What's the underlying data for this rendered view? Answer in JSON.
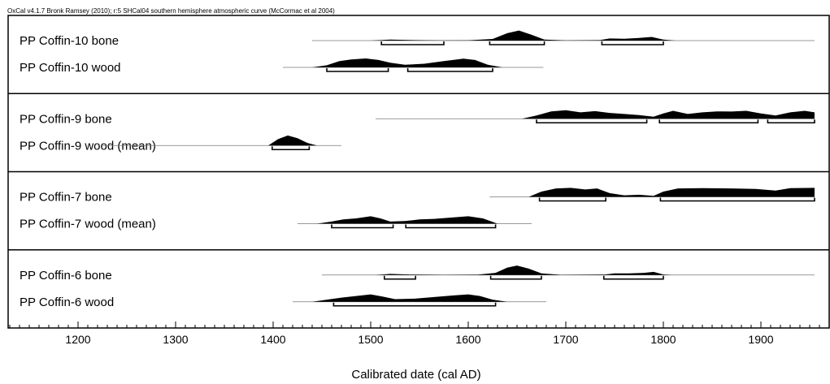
{
  "chart_data": {
    "type": "area",
    "header": "OxCal v4.1.7 Bronk Ramsey (2010); r:5 SHCal04 southern hemisphere atmospheric curve (McCormac et al 2004)",
    "xlabel": "Calibrated date (cal AD)",
    "x_range": [
      1130,
      1960
    ],
    "x_major_ticks": [
      1200,
      1300,
      1400,
      1500,
      1600,
      1700,
      1800,
      1900
    ],
    "x_minor_step": 10,
    "groups": [
      {
        "samples": [
          {
            "label": "PP Coffin-10 bone",
            "line": [
              1440,
              1955
            ],
            "distribution": [
              [
                1500,
                0
              ],
              [
                1520,
                0.1
              ],
              [
                1545,
                0.05
              ],
              [
                1570,
                0.02
              ],
              [
                1600,
                0.03
              ],
              [
                1625,
                0.15
              ],
              [
                1640,
                0.7
              ],
              [
                1652,
                0.95
              ],
              [
                1665,
                0.55
              ],
              [
                1678,
                0.1
              ],
              [
                1700,
                0.02
              ],
              [
                1735,
                0.05
              ],
              [
                1745,
                0.2
              ],
              [
                1760,
                0.18
              ],
              [
                1775,
                0.25
              ],
              [
                1788,
                0.35
              ],
              [
                1800,
                0.1
              ],
              [
                1812,
                0
              ]
            ],
            "ranges": [
              [
                1511,
                1575
              ],
              [
                1622,
                1678
              ],
              [
                1737,
                1800
              ]
            ]
          },
          {
            "label": "PP Coffin-10 wood",
            "line": [
              1410,
              1677
            ],
            "distribution": [
              [
                1440,
                0
              ],
              [
                1455,
                0.2
              ],
              [
                1468,
                0.6
              ],
              [
                1480,
                0.75
              ],
              [
                1495,
                0.85
              ],
              [
                1508,
                0.7
              ],
              [
                1520,
                0.45
              ],
              [
                1535,
                0.25
              ],
              [
                1555,
                0.35
              ],
              [
                1575,
                0.6
              ],
              [
                1595,
                0.82
              ],
              [
                1607,
                0.7
              ],
              [
                1620,
                0.25
              ],
              [
                1635,
                0
              ]
            ],
            "ranges": [
              [
                1455,
                1518
              ],
              [
                1538,
                1625
              ]
            ]
          }
        ]
      },
      {
        "samples": [
          {
            "label": "PP Coffin-9 bone",
            "line": [
              1505,
              1955
            ],
            "distribution": [
              [
                1655,
                0
              ],
              [
                1670,
                0.3
              ],
              [
                1685,
                0.7
              ],
              [
                1700,
                0.8
              ],
              [
                1715,
                0.6
              ],
              [
                1730,
                0.72
              ],
              [
                1745,
                0.55
              ],
              [
                1760,
                0.45
              ],
              [
                1775,
                0.35
              ],
              [
                1790,
                0.2
              ],
              [
                1800,
                0.5
              ],
              [
                1810,
                0.75
              ],
              [
                1825,
                0.45
              ],
              [
                1840,
                0.6
              ],
              [
                1855,
                0.7
              ],
              [
                1870,
                0.68
              ],
              [
                1885,
                0.75
              ],
              [
                1900,
                0.5
              ],
              [
                1915,
                0.3
              ],
              [
                1930,
                0.6
              ],
              [
                1945,
                0.75
              ],
              [
                1955,
                0.6
              ]
            ],
            "ranges": [
              [
                1670,
                1783
              ],
              [
                1796,
                1897
              ],
              [
                1907,
                1955
              ]
            ]
          },
          {
            "label": "PP Coffin-9 wood (mean)",
            "line": [
              1225,
              1470
            ],
            "distribution": [
              [
                1395,
                0
              ],
              [
                1405,
                0.6
              ],
              [
                1415,
                0.95
              ],
              [
                1425,
                0.7
              ],
              [
                1435,
                0.25
              ],
              [
                1445,
                0
              ]
            ],
            "ranges": [
              [
                1399,
                1437
              ]
            ]
          }
        ]
      },
      {
        "samples": [
          {
            "label": "PP Coffin-7 bone",
            "line": [
              1622,
              1955
            ],
            "distribution": [
              [
                1662,
                0
              ],
              [
                1675,
                0.5
              ],
              [
                1690,
                0.8
              ],
              [
                1705,
                0.85
              ],
              [
                1720,
                0.7
              ],
              [
                1732,
                0.8
              ],
              [
                1745,
                0.35
              ],
              [
                1760,
                0.15
              ],
              [
                1775,
                0.2
              ],
              [
                1790,
                0.1
              ],
              [
                1800,
                0.5
              ],
              [
                1815,
                0.8
              ],
              [
                1840,
                0.82
              ],
              [
                1870,
                0.8
              ],
              [
                1895,
                0.75
              ],
              [
                1915,
                0.6
              ],
              [
                1930,
                0.82
              ],
              [
                1955,
                0.85
              ]
            ],
            "ranges": [
              [
                1673,
                1741
              ],
              [
                1797,
                1955
              ]
            ]
          },
          {
            "label": "PP Coffin-7 wood (mean)",
            "line": [
              1425,
              1665
            ],
            "distribution": [
              [
                1445,
                0
              ],
              [
                1460,
                0.2
              ],
              [
                1472,
                0.4
              ],
              [
                1485,
                0.5
              ],
              [
                1500,
                0.7
              ],
              [
                1510,
                0.5
              ],
              [
                1520,
                0.2
              ],
              [
                1535,
                0.25
              ],
              [
                1550,
                0.4
              ],
              [
                1565,
                0.45
              ],
              [
                1585,
                0.6
              ],
              [
                1600,
                0.7
              ],
              [
                1615,
                0.5
              ],
              [
                1630,
                0
              ]
            ],
            "ranges": [
              [
                1460,
                1523
              ],
              [
                1536,
                1628
              ]
            ]
          }
        ]
      },
      {
        "samples": [
          {
            "label": "PP Coffin-6 bone",
            "line": [
              1450,
              1955
            ],
            "distribution": [
              [
                1505,
                0
              ],
              [
                1520,
                0.1
              ],
              [
                1540,
                0.05
              ],
              [
                1575,
                0.02
              ],
              [
                1610,
                0.04
              ],
              [
                1628,
                0.2
              ],
              [
                1640,
                0.7
              ],
              [
                1650,
                0.9
              ],
              [
                1662,
                0.6
              ],
              [
                1675,
                0.15
              ],
              [
                1695,
                0.02
              ],
              [
                1740,
                0.05
              ],
              [
                1750,
                0.15
              ],
              [
                1765,
                0.15
              ],
              [
                1780,
                0.2
              ],
              [
                1790,
                0.3
              ],
              [
                1800,
                0.05
              ],
              [
                1810,
                0
              ]
            ],
            "ranges": [
              [
                1514,
                1546
              ],
              [
                1623,
                1675
              ],
              [
                1739,
                1800
              ]
            ]
          },
          {
            "label": "PP Coffin-6 wood",
            "line": [
              1420,
              1680
            ],
            "distribution": [
              [
                1440,
                0
              ],
              [
                1455,
                0.2
              ],
              [
                1470,
                0.4
              ],
              [
                1485,
                0.55
              ],
              [
                1500,
                0.7
              ],
              [
                1512,
                0.5
              ],
              [
                1525,
                0.25
              ],
              [
                1545,
                0.3
              ],
              [
                1565,
                0.45
              ],
              [
                1585,
                0.6
              ],
              [
                1600,
                0.7
              ],
              [
                1612,
                0.55
              ],
              [
                1625,
                0.2
              ],
              [
                1640,
                0
              ]
            ],
            "ranges": [
              [
                1462,
                1628
              ]
            ]
          }
        ]
      }
    ]
  }
}
